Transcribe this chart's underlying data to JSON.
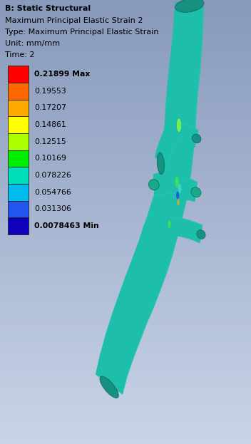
{
  "title_line1": "B: Static Structural",
  "title_line2": "Maximum Principal Elastic Strain 2",
  "title_line3": "Type: Maximum Principal Elastic Strain",
  "title_line4": "Unit: mm/mm",
  "title_line5": "Time: 2",
  "legend_values": [
    "0.21899 Max",
    "0.19553",
    "0.17207",
    "0.14861",
    "0.12515",
    "0.10169",
    "0.078226",
    "0.054766",
    "0.031306",
    "0.0078463 Min"
  ],
  "legend_colors": [
    "#FF0000",
    "#FF6600",
    "#FFAA00",
    "#FFFF00",
    "#AAFF00",
    "#00EE00",
    "#00DDBB",
    "#00BBEE",
    "#2255EE",
    "#1100BB"
  ],
  "bg_color_top": "#8899BB",
  "bg_color_bottom": "#C8D4E8",
  "aorta_main": "#1DBFAA",
  "aorta_dark": "#169080",
  "aorta_light": "#25D4BC",
  "title_fontsize": 8.0,
  "legend_fontsize": 7.8
}
